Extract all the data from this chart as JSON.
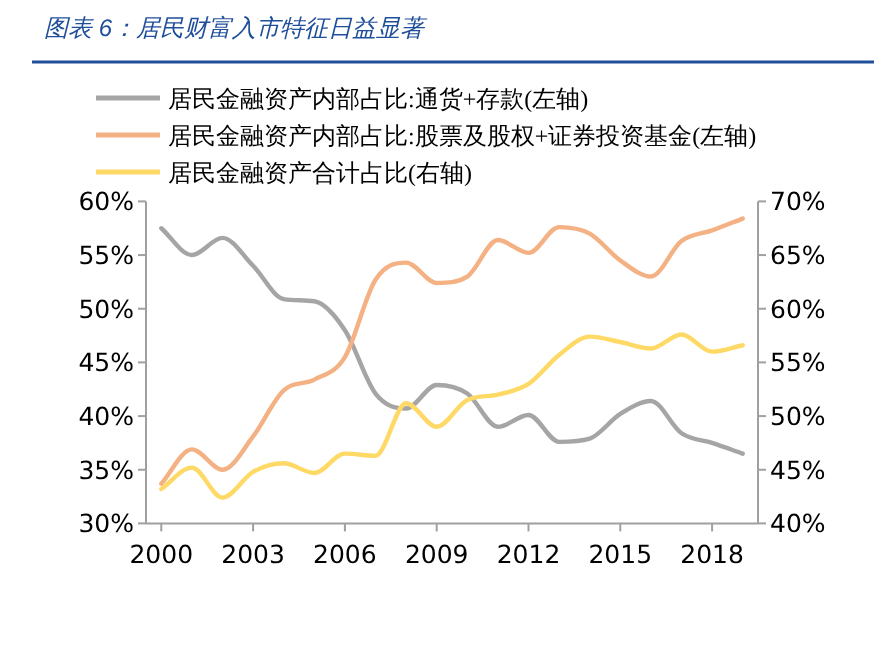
{
  "chart_data": {
    "type": "line",
    "title": "图表 6：居民财富入市特征日益显著",
    "x": [
      2000,
      2001,
      2002,
      2003,
      2004,
      2005,
      2006,
      2007,
      2008,
      2009,
      2010,
      2011,
      2012,
      2013,
      2014,
      2015,
      2016,
      2017,
      2018,
      2019
    ],
    "series": [
      {
        "name": "居民金融资产内部占比:通货+存款(左轴)",
        "color": "#a5a5a5",
        "values": [
          57.5,
          55.0,
          56.6,
          54.0,
          50.9,
          50.7,
          48.0,
          42.1,
          40.7,
          42.9,
          42.1,
          39.0,
          40.1,
          37.6,
          37.9,
          40.2,
          41.4,
          38.4,
          37.5,
          36.5
        ]
      },
      {
        "name": "居民金融资产内部占比:股票及股权+证券投资基金(左轴)",
        "color": "#f4b183",
        "values": [
          33.7,
          36.9,
          35.0,
          38.1,
          42.4,
          43.4,
          45.5,
          52.7,
          54.3,
          52.4,
          53.0,
          56.4,
          55.2,
          57.6,
          57.0,
          54.5,
          53.0,
          56.3,
          57.3,
          58.4
        ]
      },
      {
        "name": "居民金融资产合计占比(右轴)",
        "color": "#ffd966",
        "axis": "y2",
        "values": [
          43.2,
          45.2,
          42.4,
          44.8,
          45.6,
          44.7,
          46.5,
          46.3,
          51.2,
          49.0,
          51.5,
          52.0,
          53.0,
          55.7,
          57.4,
          56.9,
          56.3,
          57.6,
          56.0,
          56.6
        ]
      }
    ],
    "xlim": [
      1999.5,
      2019.5
    ],
    "xticks": [
      2000,
      2003,
      2006,
      2009,
      2012,
      2015,
      2018
    ],
    "ylim": [
      30,
      60
    ],
    "yticks": [
      {
        "value": 30,
        "label": "30%"
      },
      {
        "value": 35,
        "label": "35%"
      },
      {
        "value": 40,
        "label": "40%"
      },
      {
        "value": 45,
        "label": "45%"
      },
      {
        "value": 50,
        "label": "50%"
      },
      {
        "value": 55,
        "label": "55%"
      },
      {
        "value": 60,
        "label": "60%"
      }
    ],
    "y2lim": [
      40,
      70
    ],
    "y2ticks": [
      {
        "value": 40,
        "label": "40%"
      },
      {
        "value": 45,
        "label": "45%"
      },
      {
        "value": 50,
        "label": "50%"
      },
      {
        "value": 55,
        "label": "55%"
      },
      {
        "value": 60,
        "label": "60%"
      },
      {
        "value": 65,
        "label": "65%"
      },
      {
        "value": 70,
        "label": "70%"
      }
    ],
    "legend": "top",
    "line_style": "solid",
    "grid": false
  }
}
